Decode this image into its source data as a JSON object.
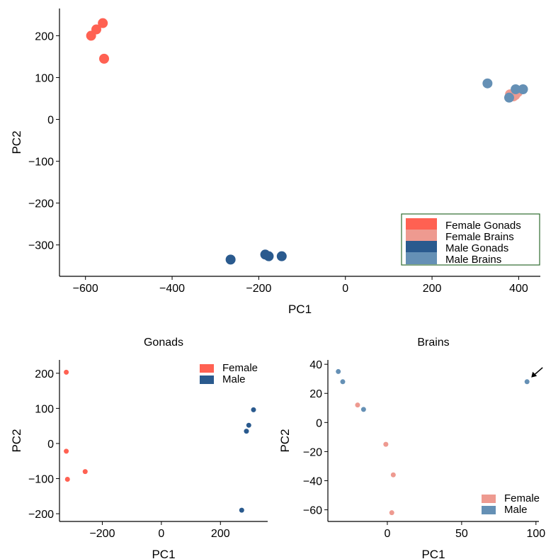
{
  "colors": {
    "female_gonads": "#FF6152",
    "female_brains": "#EE9A90",
    "male_gonads": "#2A5A8E",
    "male_brains": "#6590B5",
    "axis": "#000000",
    "legend_border": "#2E6B2E"
  },
  "chart_data": [
    {
      "id": "main",
      "type": "scatter",
      "title": "",
      "xlabel": "PC1",
      "ylabel": "PC2",
      "xlim": [
        -660,
        450
      ],
      "ylim": [
        -375,
        265
      ],
      "xticks": [
        -600,
        -400,
        -200,
        0,
        200,
        400
      ],
      "yticks": [
        -300,
        -200,
        -100,
        0,
        100,
        200
      ],
      "grid": false,
      "legend": {
        "placement": "bottom-right",
        "boxed": true,
        "entries": [
          "Female Gonads",
          "Female Brains",
          "Male Gonads",
          "Male Brains"
        ]
      },
      "series": [
        {
          "name": "Female Gonads",
          "color": "#FF6152",
          "points": [
            [
              -587,
              200
            ],
            [
              -575,
              215
            ],
            [
              -560,
              230
            ],
            [
              -557,
              145
            ]
          ]
        },
        {
          "name": "Female Brains",
          "color": "#EE9A90",
          "points": [
            [
              380,
              60
            ],
            [
              388,
              55
            ],
            [
              398,
              65
            ],
            [
              392,
              58
            ]
          ]
        },
        {
          "name": "Male Gonads",
          "color": "#2A5A8E",
          "points": [
            [
              -265,
              -335
            ],
            [
              -185,
              -323
            ],
            [
              -177,
              -327
            ],
            [
              -147,
              -327
            ]
          ]
        },
        {
          "name": "Male Brains",
          "color": "#6590B5",
          "points": [
            [
              328,
              86
            ],
            [
              378,
              52
            ],
            [
              393,
              72
            ],
            [
              410,
              72
            ]
          ]
        }
      ]
    },
    {
      "id": "gonads",
      "type": "scatter",
      "title": "Gonads",
      "xlabel": "PC1",
      "ylabel": "PC2",
      "xlim": [
        -345,
        360
      ],
      "ylim": [
        -222,
        238
      ],
      "xticks": [
        -200,
        0,
        200
      ],
      "yticks": [
        -200,
        -100,
        0,
        100,
        200
      ],
      "grid": false,
      "legend": {
        "placement": "top-right",
        "boxed": false,
        "entries": [
          "Female",
          "Male"
        ]
      },
      "series": [
        {
          "name": "Female",
          "color": "#FF6152",
          "points": [
            [
              -322,
              203
            ],
            [
              -322,
              -22
            ],
            [
              -318,
              -102
            ],
            [
              -258,
              -80
            ]
          ]
        },
        {
          "name": "Male",
          "color": "#2A5A8E",
          "points": [
            [
              272,
              -190
            ],
            [
              288,
              35
            ],
            [
              296,
              52
            ],
            [
              312,
              96
            ]
          ]
        }
      ]
    },
    {
      "id": "brains",
      "type": "scatter",
      "title": "Brains",
      "xlabel": "PC1",
      "ylabel": "PC2",
      "xlim": [
        -40,
        102
      ],
      "ylim": [
        -68,
        43
      ],
      "xticks": [
        0,
        50,
        100
      ],
      "yticks": [
        -60,
        -40,
        -20,
        0,
        20,
        40
      ],
      "grid": false,
      "legend": {
        "placement": "bottom-right",
        "boxed": false,
        "entries": [
          "Female",
          "Male"
        ]
      },
      "annotations": [
        {
          "type": "arrow",
          "pointing_to": [
            94,
            28
          ]
        }
      ],
      "series": [
        {
          "name": "Female",
          "color": "#EE9A90",
          "points": [
            [
              -20,
              12
            ],
            [
              -1,
              -15
            ],
            [
              4,
              -36
            ],
            [
              3,
              -62
            ]
          ]
        },
        {
          "name": "Male",
          "color": "#6590B5",
          "points": [
            [
              -33,
              35
            ],
            [
              -30,
              28
            ],
            [
              -16,
              9
            ],
            [
              94,
              28
            ]
          ]
        }
      ]
    }
  ]
}
